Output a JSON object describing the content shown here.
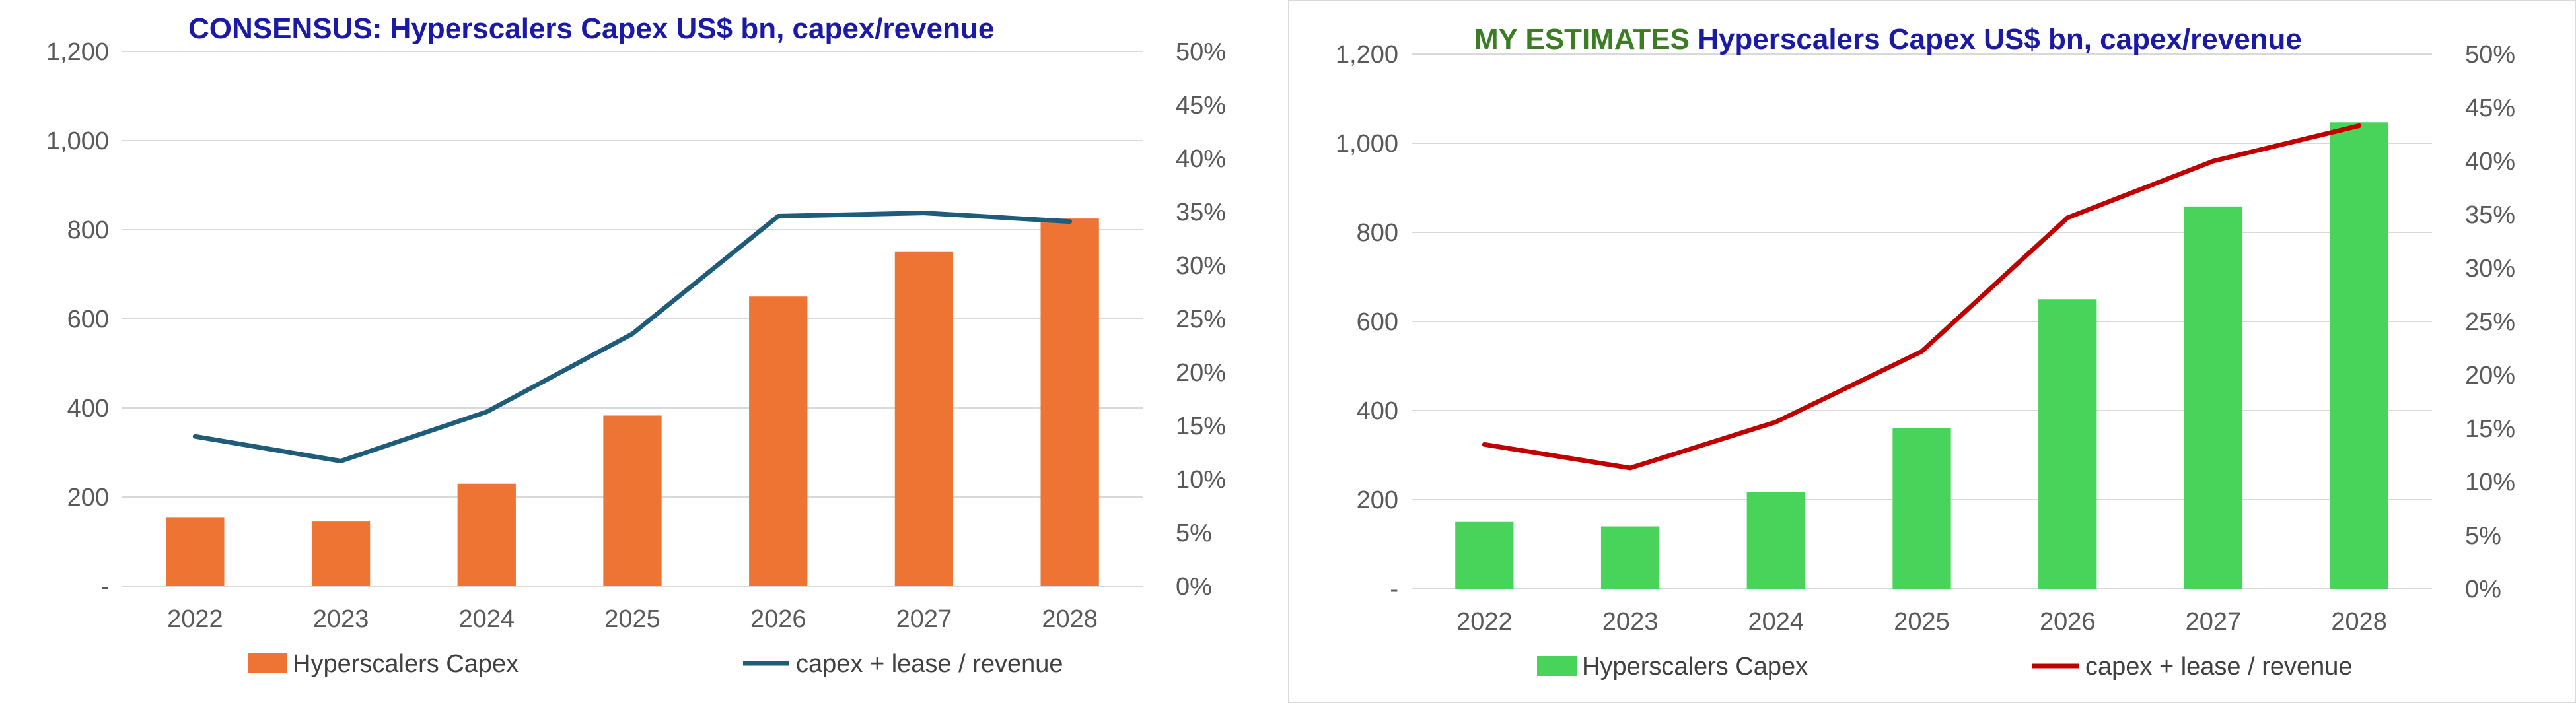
{
  "chart_data": [
    {
      "type": "bar",
      "title_prefix": "CONSENSUS:",
      "title_main": "Hyperscalers Capex US$ bn, capex/revenue",
      "categories": [
        "2022",
        "2023",
        "2024",
        "2025",
        "2026",
        "2027",
        "2028"
      ],
      "series": [
        {
          "name": "Hyperscalers Capex",
          "type": "bar",
          "axis": "left",
          "values": [
            155,
            145,
            230,
            383,
            650,
            750,
            825
          ],
          "color": "#ED7433"
        },
        {
          "name": "capex + lease / revenue",
          "type": "line",
          "axis": "right",
          "values": [
            14.0,
            11.7,
            16.3,
            23.6,
            34.6,
            34.9,
            34.1
          ],
          "color": "#1F5C7A"
        }
      ],
      "y_left": {
        "min": 0,
        "max": 1200,
        "step": 200,
        "tick_labels": [
          "-",
          "200",
          "400",
          "600",
          "800",
          "1,000",
          "1,200"
        ]
      },
      "y_right": {
        "min": 0,
        "max": 50,
        "step": 5,
        "tick_labels": [
          "0%",
          "5%",
          "10%",
          "15%",
          "20%",
          "25%",
          "30%",
          "35%",
          "40%",
          "45%",
          "50%"
        ]
      },
      "grid": true,
      "legend": "bottom",
      "colors": {
        "title_prefix": "#1A1AA6",
        "title_main": "#1A1AA6",
        "grid": "#D9D9D9"
      }
    },
    {
      "type": "bar",
      "title_prefix": "MY ESTIMATES",
      "title_main": "Hyperscalers Capex US$ bn, capex/revenue",
      "categories": [
        "2022",
        "2023",
        "2024",
        "2025",
        "2026",
        "2027",
        "2028"
      ],
      "series": [
        {
          "name": "Hyperscalers Capex",
          "type": "bar",
          "axis": "left",
          "values": [
            150,
            140,
            217,
            360,
            650,
            858,
            1047
          ],
          "color": "#48D45A"
        },
        {
          "name": "capex + lease / revenue",
          "type": "line",
          "axis": "right",
          "values": [
            13.5,
            11.3,
            15.6,
            22.2,
            34.7,
            40.0,
            43.3
          ],
          "color": "#C00000"
        }
      ],
      "y_left": {
        "min": 0,
        "max": 1200,
        "step": 200,
        "tick_labels": [
          "-",
          "200",
          "400",
          "600",
          "800",
          "1,000",
          "1,200"
        ]
      },
      "y_right": {
        "min": 0,
        "max": 50,
        "step": 5,
        "tick_labels": [
          "0%",
          "5%",
          "10%",
          "15%",
          "20%",
          "25%",
          "30%",
          "35%",
          "40%",
          "45%",
          "50%"
        ]
      },
      "grid": true,
      "legend": "bottom",
      "colors": {
        "title_prefix": "#3A7D23",
        "title_main": "#1A1AA6",
        "grid": "#D9D9D9"
      }
    }
  ]
}
